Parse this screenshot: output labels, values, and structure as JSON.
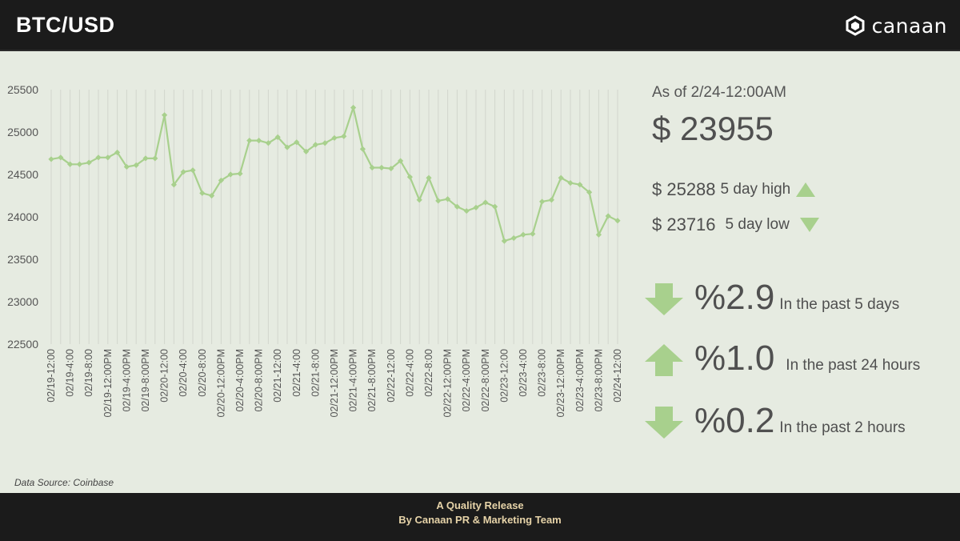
{
  "header": {
    "title": "BTC/USD",
    "brand_name": "canaan"
  },
  "summary": {
    "as_of": "As of 2/24-12:00AM",
    "current_price": "$ 23955",
    "high_value": "$ 25288",
    "high_label": "5 day high",
    "low_value": "$ 23716",
    "low_label": "5 day low"
  },
  "changes": [
    {
      "direction": "down",
      "pct": "%2.9",
      "label": "In the past 5 days"
    },
    {
      "direction": "up",
      "pct": "%1.0",
      "label": "In the past 24 hours"
    },
    {
      "direction": "down",
      "pct": "%0.2",
      "label": "In the past 2 hours"
    }
  ],
  "source": "Data Source: Coinbase",
  "footer": {
    "line1": "A Quality Release",
    "line2": "By Canaan PR & Marketing Team"
  },
  "colors": {
    "series": "#a8d08d",
    "header_bg": "#1b1b1b",
    "background": "#e6ebe1",
    "footer_text": "#e6d3a8"
  },
  "chart_data": {
    "type": "line",
    "title": "",
    "xlabel": "",
    "ylabel": "",
    "ylim": [
      22500,
      25500
    ],
    "yticks": [
      22500,
      23000,
      23500,
      24000,
      24500,
      25000,
      25500
    ],
    "grid": "vertical",
    "x_tick_labels": [
      "02/19-12:00",
      "02/19-4:00",
      "02/19-8:00",
      "02/19-12:00PM",
      "02/19-4:00PM",
      "02/19-8:00PM",
      "02/20-12:00",
      "02/20-4:00",
      "02/20-8:00",
      "02/20-12:00PM",
      "02/20-4:00PM",
      "02/20-8:00PM",
      "02/21-12:00",
      "02/21-4:00",
      "02/21-8:00",
      "02/21-12:00PM",
      "02/21-4:00PM",
      "02/21-8:00PM",
      "02/22-12:00",
      "02/22-4:00",
      "02/22-8:00",
      "02/22-12:00PM",
      "02/22-4:00PM",
      "02/22-8:00PM",
      "02/23-12:00",
      "02/23-4:00",
      "02/23-8:00",
      "02/23-12:00PM",
      "02/23-4:00PM",
      "02/23-8:00PM",
      "02/24-12:00"
    ],
    "values": [
      24680,
      24700,
      24620,
      24620,
      24640,
      24700,
      24700,
      24760,
      24590,
      24610,
      24690,
      24690,
      25200,
      24380,
      24530,
      24550,
      24280,
      24250,
      24430,
      24500,
      24510,
      24900,
      24900,
      24870,
      24940,
      24820,
      24880,
      24770,
      24850,
      24870,
      24930,
      24950,
      25288,
      24800,
      24580,
      24580,
      24570,
      24660,
      24470,
      24200,
      24460,
      24190,
      24210,
      24120,
      24070,
      24110,
      24170,
      24120,
      23716,
      23750,
      23790,
      23800,
      24180,
      24200,
      24460,
      24400,
      24380,
      24290,
      23790,
      24010,
      23955
    ]
  }
}
